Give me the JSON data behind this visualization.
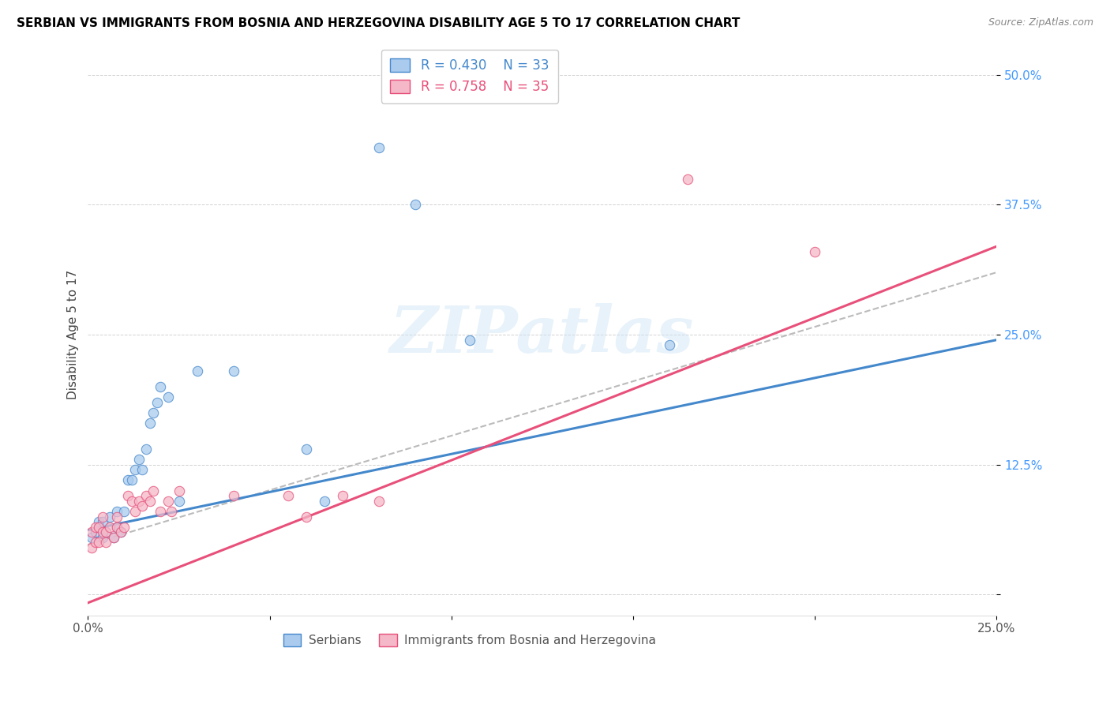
{
  "title": "SERBIAN VS IMMIGRANTS FROM BOSNIA AND HERZEGOVINA DISABILITY AGE 5 TO 17 CORRELATION CHART",
  "source": "Source: ZipAtlas.com",
  "ylabel": "Disability Age 5 to 17",
  "xlabel": "",
  "xlim": [
    0.0,
    0.25
  ],
  "ylim": [
    -0.02,
    0.52
  ],
  "yticks": [
    0.0,
    0.125,
    0.25,
    0.375,
    0.5
  ],
  "ytick_labels": [
    "",
    "12.5%",
    "25.0%",
    "37.5%",
    "50.0%"
  ],
  "xticks": [
    0.0,
    0.05,
    0.1,
    0.15,
    0.2,
    0.25
  ],
  "xtick_labels": [
    "0.0%",
    "",
    "",
    "",
    "",
    "25.0%"
  ],
  "color_serbian": "#aacbee",
  "color_bosnian": "#f4b8c8",
  "color_line_serbian": "#4488cc",
  "color_line_bosnian": "#e8507a",
  "color_line_combined": "#bbbbbb",
  "color_ytick": "#4499ff",
  "watermark_text": "ZIPatlas",
  "serbians_x": [
    0.001,
    0.002,
    0.003,
    0.003,
    0.004,
    0.004,
    0.005,
    0.006,
    0.007,
    0.008,
    0.008,
    0.009,
    0.01,
    0.011,
    0.012,
    0.013,
    0.014,
    0.015,
    0.016,
    0.017,
    0.018,
    0.019,
    0.02,
    0.022,
    0.025,
    0.03,
    0.04,
    0.06,
    0.065,
    0.08,
    0.09,
    0.105,
    0.16
  ],
  "serbians_y": [
    0.055,
    0.06,
    0.065,
    0.07,
    0.055,
    0.07,
    0.06,
    0.075,
    0.055,
    0.065,
    0.08,
    0.06,
    0.08,
    0.11,
    0.11,
    0.12,
    0.13,
    0.12,
    0.14,
    0.165,
    0.175,
    0.185,
    0.2,
    0.19,
    0.09,
    0.215,
    0.215,
    0.14,
    0.09,
    0.43,
    0.375,
    0.245,
    0.24
  ],
  "bosnians_x": [
    0.001,
    0.001,
    0.002,
    0.002,
    0.003,
    0.003,
    0.004,
    0.004,
    0.005,
    0.005,
    0.006,
    0.007,
    0.008,
    0.008,
    0.009,
    0.01,
    0.011,
    0.012,
    0.013,
    0.014,
    0.015,
    0.016,
    0.017,
    0.018,
    0.02,
    0.022,
    0.023,
    0.025,
    0.04,
    0.055,
    0.06,
    0.07,
    0.08,
    0.165,
    0.2
  ],
  "bosnians_y": [
    0.045,
    0.06,
    0.05,
    0.065,
    0.05,
    0.065,
    0.06,
    0.075,
    0.06,
    0.05,
    0.065,
    0.055,
    0.065,
    0.075,
    0.06,
    0.065,
    0.095,
    0.09,
    0.08,
    0.09,
    0.085,
    0.095,
    0.09,
    0.1,
    0.08,
    0.09,
    0.08,
    0.1,
    0.095,
    0.095,
    0.075,
    0.095,
    0.09,
    0.4,
    0.33
  ],
  "line_serbian_x0": 0.0,
  "line_serbian_y0": 0.062,
  "line_serbian_x1": 0.25,
  "line_serbian_y1": 0.245,
  "line_bosnian_x0": 0.0,
  "line_bosnian_y0": -0.008,
  "line_bosnian_x1": 0.25,
  "line_bosnian_y1": 0.335,
  "line_combined_x0": 0.0,
  "line_combined_y0": 0.048,
  "line_combined_x1": 0.25,
  "line_combined_y1": 0.31
}
